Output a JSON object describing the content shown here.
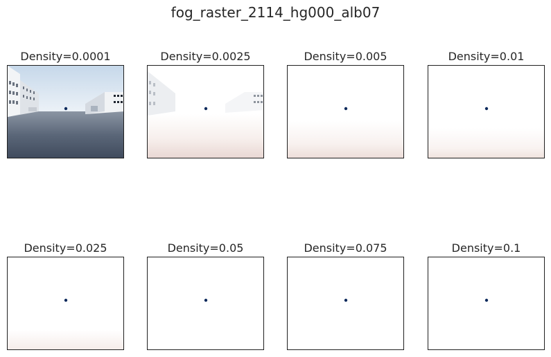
{
  "title": "fog_raster_2114_hg000_alb07",
  "panels": [
    {
      "label": "Density=0.0001"
    },
    {
      "label": "Density=0.0025"
    },
    {
      "label": "Density=0.005"
    },
    {
      "label": "Density=0.01"
    },
    {
      "label": "Density=0.025"
    },
    {
      "label": "Density=0.05"
    },
    {
      "label": "Density=0.075"
    },
    {
      "label": "Density=0.1"
    }
  ],
  "colors": {
    "marker": "#0d2a5c",
    "frame": "#1f1f1f",
    "road": "#4a5566",
    "sky": "#d9e4ef"
  }
}
